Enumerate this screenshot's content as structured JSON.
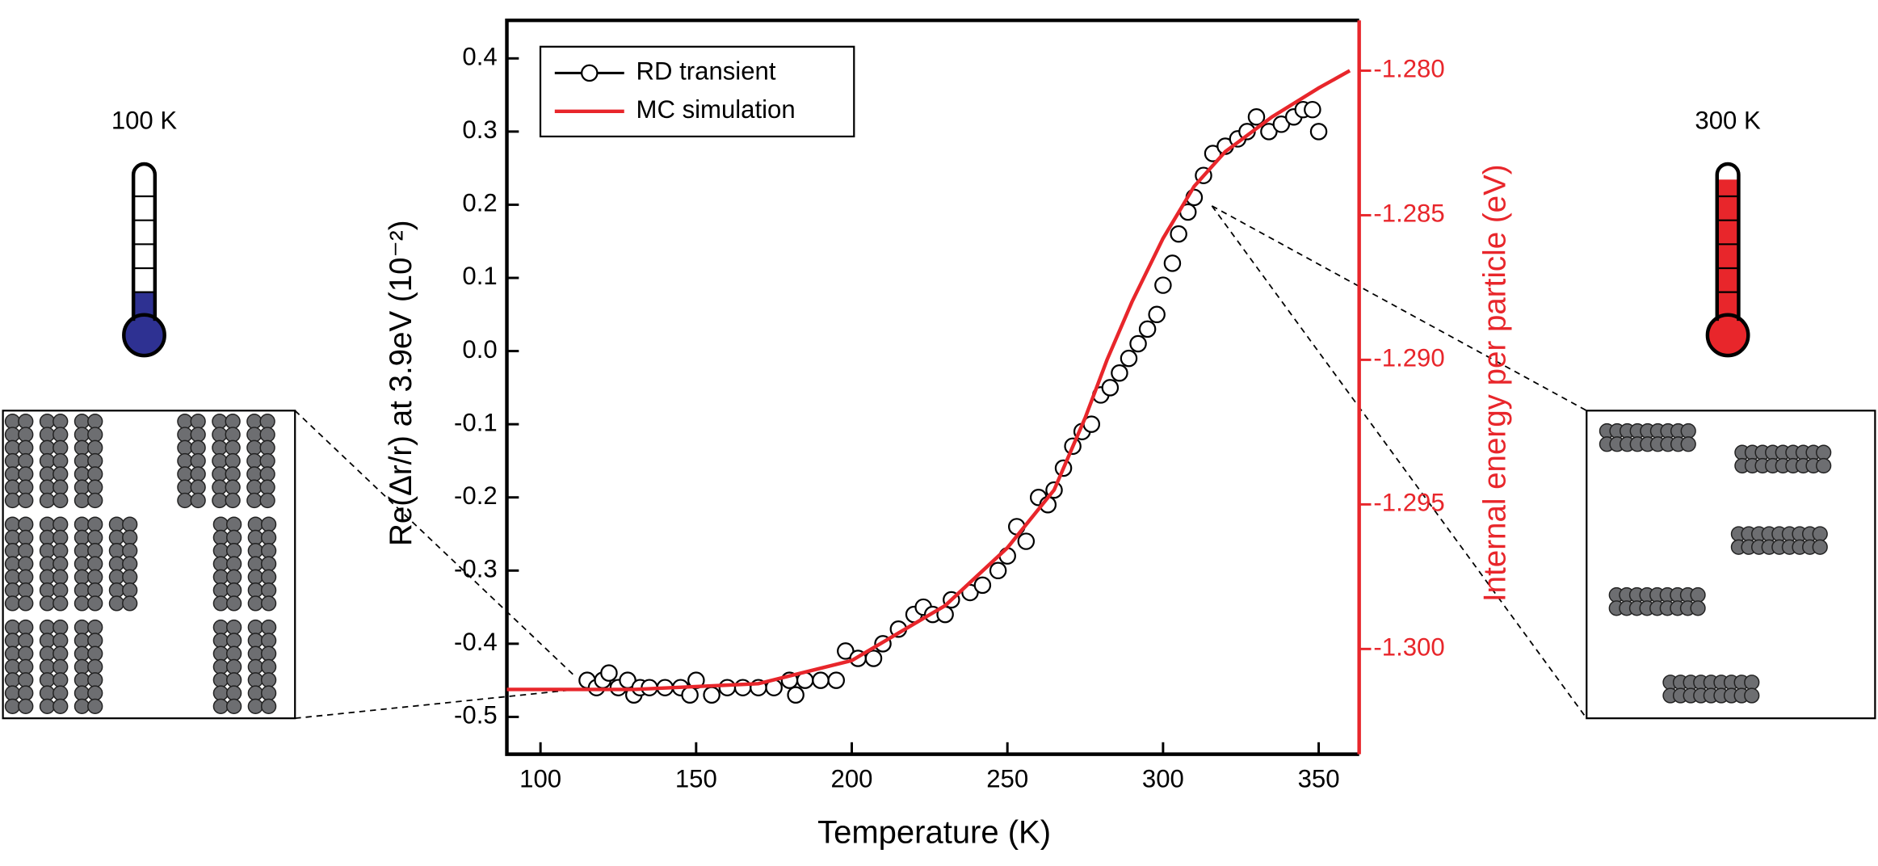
{
  "chart_data": {
    "type": "scatter",
    "xlabel": "Temperature (K)",
    "ylabel": "Re(Δr/r) at 3.9eV  (10⁻²)",
    "y2label": "Internal energy per particle (eV)",
    "annotations": [
      "100 K",
      "300 K"
    ],
    "xlim": [
      89.2,
      363
    ],
    "xticks": [
      100,
      150,
      200,
      250,
      300,
      350
    ],
    "ylim": [
      -0.551,
      0.452
    ],
    "yticks": [
      0.4,
      0.3,
      0.2,
      0.1,
      {
        "value": 0,
        "label": "0.0"
      },
      -0.1,
      -0.2,
      -0.3,
      -0.4,
      -0.5
    ],
    "y2lim": [
      -1.30364,
      -1.27826
    ],
    "y2ticks": [
      {
        "value": -1.28,
        "label": "-1.280"
      },
      -1.285,
      {
        "value": -1.29,
        "label": "-1.290"
      },
      -1.295,
      {
        "value": -1.3,
        "label": "-1.300"
      }
    ],
    "y2color": "#e8262b",
    "legend": "upper left",
    "series": [
      {
        "name": "RD transient",
        "color": "#000000",
        "marker": "open-circle",
        "x": [
          115,
          118,
          120,
          122,
          125,
          128,
          130,
          132,
          135,
          140,
          145,
          148,
          150,
          155,
          160,
          165,
          170,
          175,
          180,
          182,
          185,
          190,
          195,
          198,
          202,
          207,
          210,
          215,
          220,
          223,
          226,
          230,
          232,
          238,
          242,
          247,
          250,
          253,
          256,
          260,
          263,
          265,
          268,
          271,
          274,
          277,
          280,
          283,
          286,
          289,
          292,
          295,
          298,
          300,
          303,
          305,
          308,
          310,
          313,
          316,
          320,
          324,
          327,
          330,
          334,
          338,
          342,
          345,
          348,
          350
        ],
        "values": [
          -0.45,
          -0.46,
          -0.45,
          -0.44,
          -0.46,
          -0.45,
          -0.47,
          -0.46,
          -0.46,
          -0.46,
          -0.46,
          -0.47,
          -0.45,
          -0.47,
          -0.46,
          -0.46,
          -0.46,
          -0.46,
          -0.45,
          -0.47,
          -0.45,
          -0.45,
          -0.45,
          -0.41,
          -0.42,
          -0.42,
          -0.4,
          -0.38,
          -0.36,
          -0.35,
          -0.36,
          -0.36,
          -0.34,
          -0.33,
          -0.32,
          -0.3,
          -0.28,
          -0.24,
          -0.26,
          -0.2,
          -0.21,
          -0.19,
          -0.16,
          -0.13,
          -0.11,
          -0.1,
          -0.06,
          -0.05,
          -0.03,
          -0.01,
          0.01,
          0.03,
          0.05,
          0.09,
          0.12,
          0.16,
          0.19,
          0.21,
          0.24,
          0.27,
          0.28,
          0.29,
          0.3,
          0.32,
          0.3,
          0.31,
          0.32,
          0.33,
          0.33,
          0.3
        ]
      },
      {
        "name": "MC simulation",
        "color": "#e8262b",
        "axis": "y2",
        "x": [
          89.2,
          130,
          170,
          200,
          230,
          250,
          265,
          275,
          282,
          290,
          300,
          310,
          320,
          335,
          350,
          360
        ],
        "values": [
          -1.3014,
          -1.3014,
          -1.3012,
          -1.3004,
          -1.2985,
          -1.2965,
          -1.2945,
          -1.292,
          -1.29,
          -1.288,
          -1.2858,
          -1.284,
          -1.2828,
          -1.2816,
          -1.2806,
          -1.28
        ]
      }
    ]
  }
}
